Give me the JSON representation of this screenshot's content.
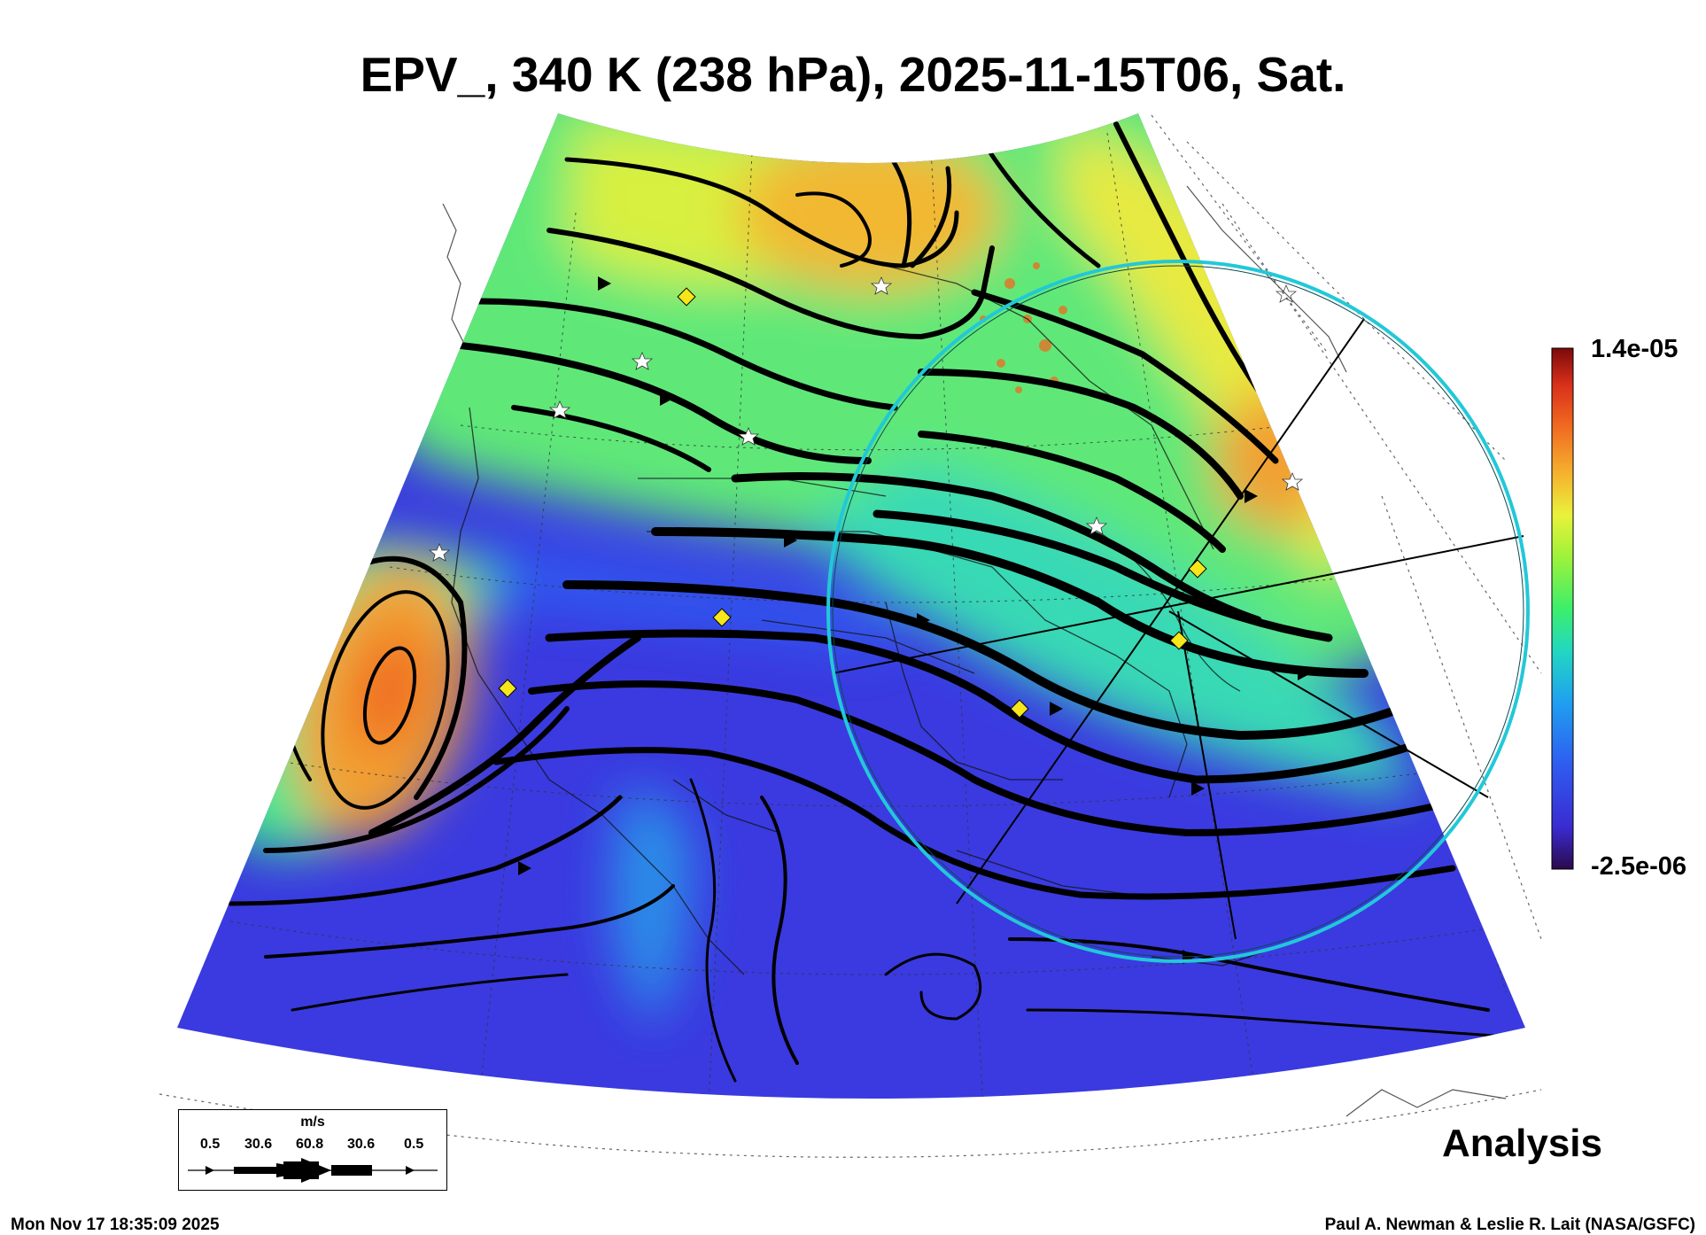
{
  "title": "EPV_, 340 K (238 hPa), 2025-11-15T06, Sat.",
  "colorbar": {
    "max_label": "1.4e-05",
    "min_label": "-2.5e-06",
    "stops": [
      "#2a0a4a",
      "#3a2bd0",
      "#2f5cf0",
      "#1fa0f0",
      "#22d8c0",
      "#3cef6a",
      "#9ff23a",
      "#e9f23a",
      "#f6b12e",
      "#f06a20",
      "#d8301a",
      "#7a0a0a"
    ]
  },
  "legend": {
    "unit": "m/s",
    "values": [
      "0.5",
      "30.6",
      "60.8",
      "30.6",
      "0.5"
    ]
  },
  "label_analysis": "Analysis",
  "timestamp": "Mon Nov 17 18:35:09 2025",
  "credit": "Paul A. Newman & Leslie R. Lait (NASA/GSFC)",
  "colors": {
    "low_pv": "#3a3ae0",
    "mid_pv": "#33e0a0",
    "high_pv": "#f0a030",
    "streamline": "#000000",
    "ring": "#22c8d8",
    "station_marker": "#f6e61a"
  }
}
